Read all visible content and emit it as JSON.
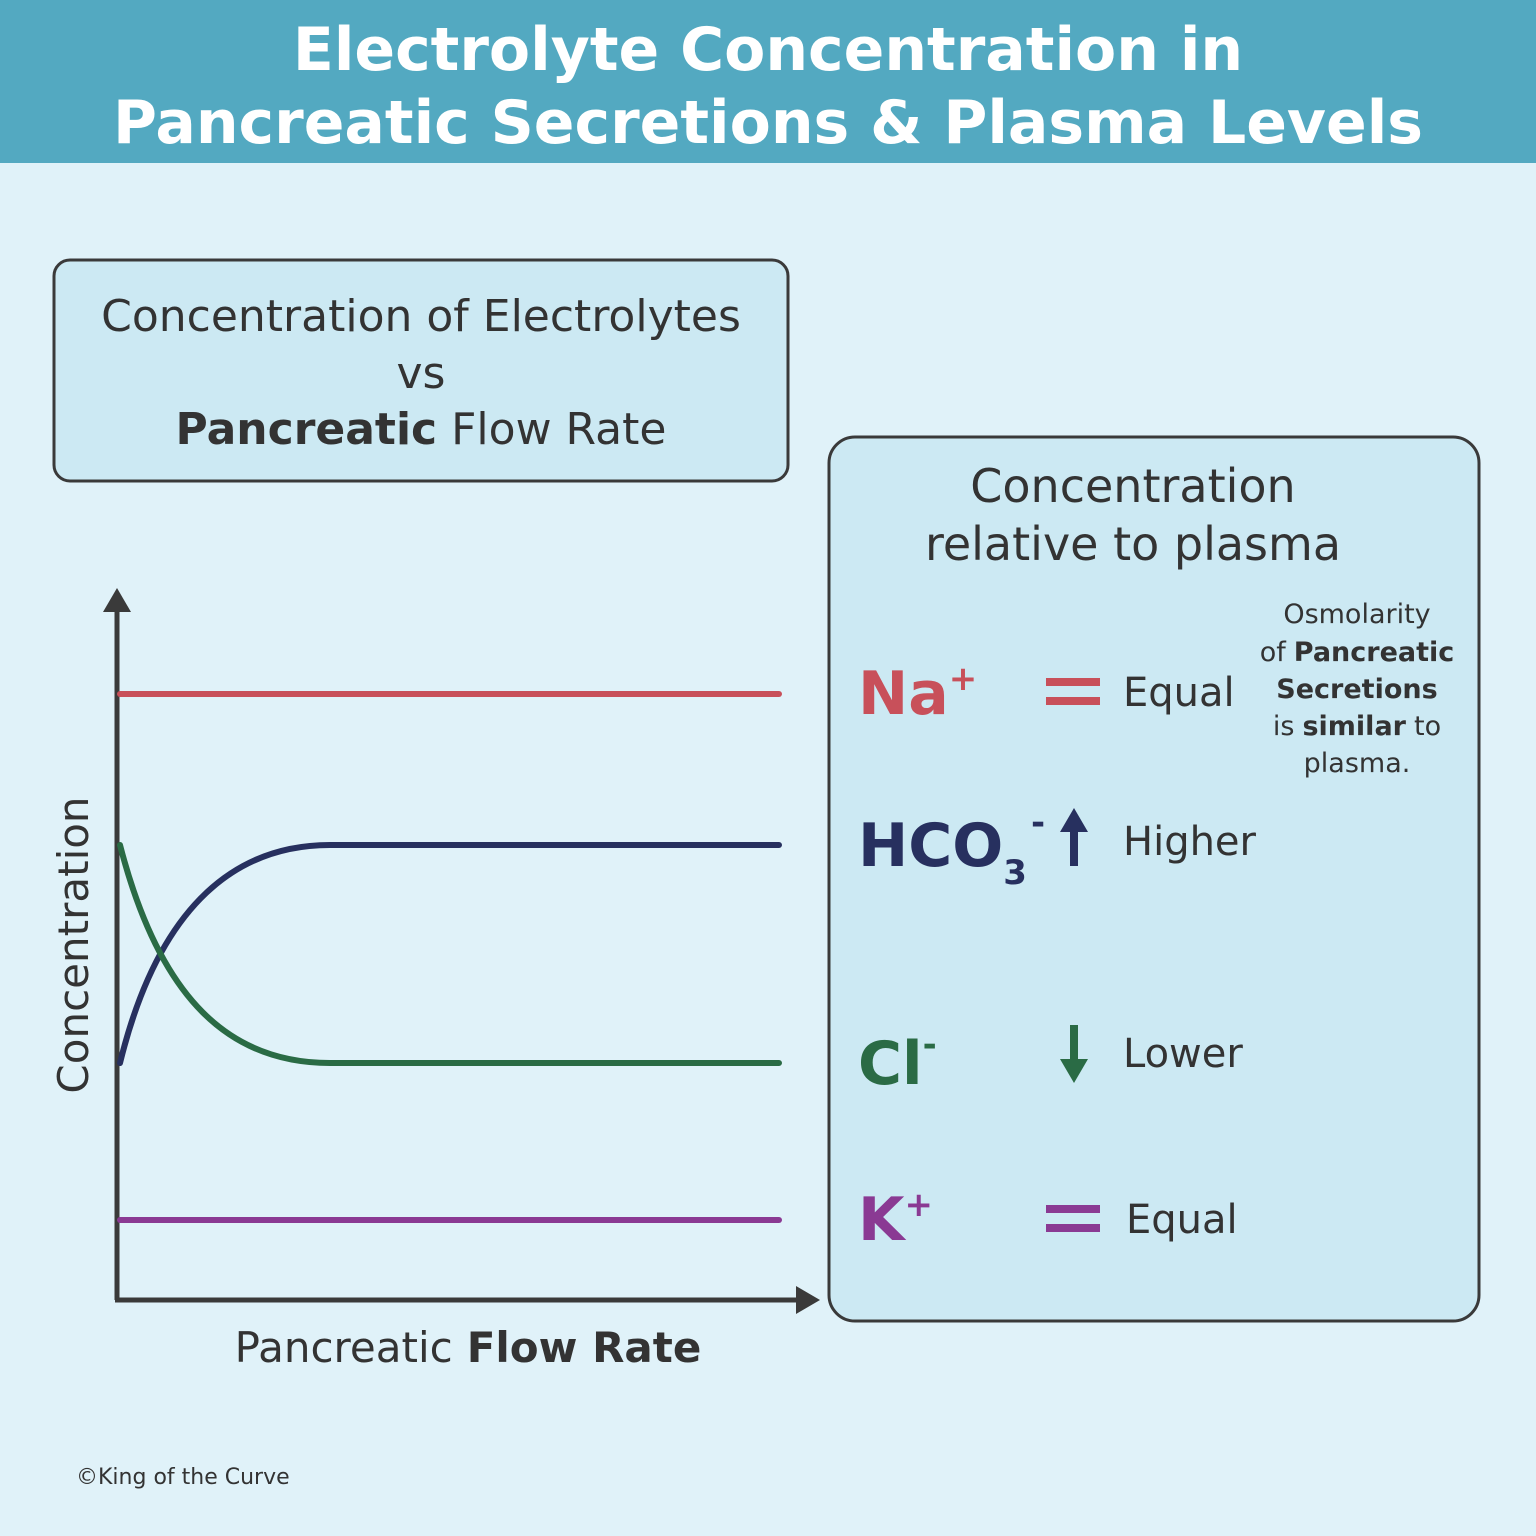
{
  "header": {
    "title": [
      "Electrolyte Concentration in",
      "Pancreatic Secretions & Plasma Levels"
    ]
  },
  "graph": {
    "title": {
      "line1": "Concentration of Electrolytes",
      "line2": "vs",
      "line3_bold": "Pancreatic",
      "line3_rest": "Flow Rate"
    },
    "y_label": "Concentration",
    "x_label": {
      "normal": "Pancreatic",
      "bold": "Flow Rate"
    }
  },
  "comparison": {
    "title": [
      "Concentration",
      "relative to plasma"
    ],
    "rows": [
      {
        "ion": "Na",
        "charge": "+",
        "relation": "Equal"
      },
      {
        "ion": "HCO",
        "subscript": "3",
        "charge": "-",
        "relation": "Higher"
      },
      {
        "ion": "Cl",
        "charge": "-",
        "relation": "Lower"
      },
      {
        "ion": "K",
        "charge": "+",
        "relation": "Equal"
      }
    ],
    "note": {
      "line1": "Osmolarity",
      "line2": [
        "of",
        "Pancreatic"
      ],
      "line3": "Secretions",
      "line4": [
        "is",
        "similar",
        "to"
      ],
      "line5": "plasma."
    }
  },
  "footer": "©King of the Curve"
}
